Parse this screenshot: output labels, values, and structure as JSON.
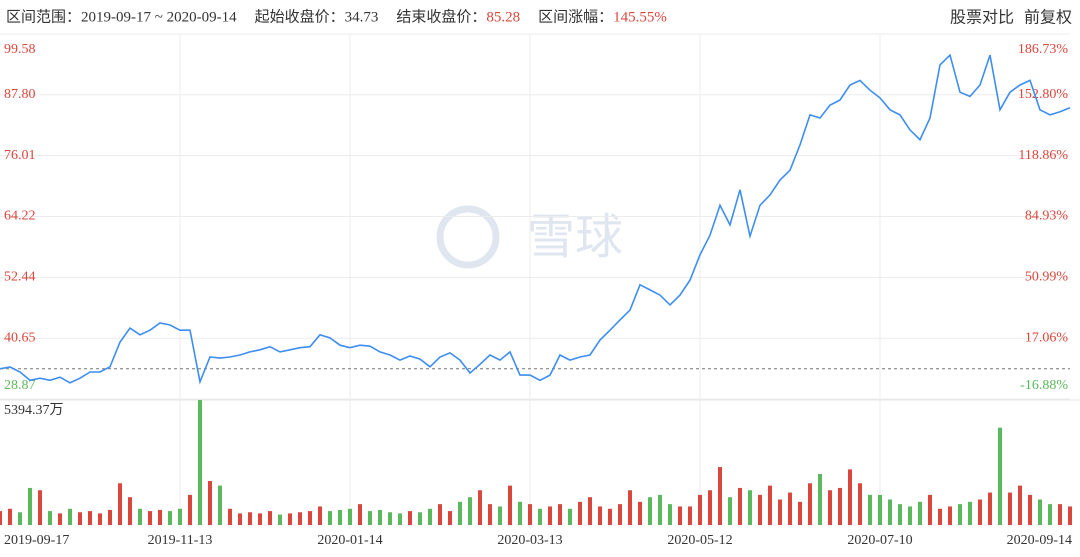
{
  "chart_data": {
    "type": "line",
    "range_label": "区间范围：",
    "range": "2019-09-17 ~ 2020-09-14",
    "stats": [
      {
        "label": "起始收盘价：",
        "value": 34.73
      },
      {
        "label": "结束收盘价：",
        "value": 85.28
      },
      {
        "label": "区间涨幅：",
        "value": 145.55,
        "value_label": "145.55%"
      }
    ],
    "buttons": [
      "股票对比",
      "前复权"
    ],
    "watermark": "雪球",
    "color": "#3d8ef0",
    "up_color": "#d9473d",
    "down_color": "#5cb85c",
    "categories": [
      "2019-09-17",
      null,
      null,
      null,
      null,
      null,
      null,
      null,
      null,
      null,
      null,
      null,
      null,
      null,
      null,
      null,
      null,
      null,
      "2019-11-13",
      null,
      null,
      null,
      null,
      null,
      null,
      null,
      null,
      null,
      null,
      null,
      null,
      null,
      null,
      null,
      null,
      "2020-01-14",
      null,
      null,
      null,
      null,
      null,
      null,
      null,
      null,
      null,
      null,
      null,
      null,
      null,
      null,
      null,
      null,
      null,
      "2020-03-13",
      null,
      null,
      null,
      null,
      null,
      null,
      null,
      null,
      null,
      null,
      null,
      null,
      null,
      null,
      null,
      null,
      "2020-05-12",
      null,
      null,
      null,
      null,
      null,
      null,
      null,
      null,
      null,
      null,
      null,
      null,
      null,
      null,
      null,
      null,
      null,
      "2020-07-10",
      null,
      null,
      null,
      null,
      null,
      null,
      null,
      null,
      null,
      null,
      null,
      null,
      null,
      null,
      null,
      null,
      null,
      null,
      "2020-09-14"
    ],
    "values": [
      34.73,
      35.07,
      34.1,
      32.5,
      32.9,
      32.5,
      33.1,
      32.0,
      32.9,
      34.1,
      34.1,
      35.1,
      39.9,
      42.6,
      41.3,
      42.2,
      43.6,
      43.2,
      42.2,
      42.2,
      32.2,
      37.0,
      36.8,
      37.0,
      37.4,
      38.0,
      38.4,
      39.0,
      38.0,
      38.4,
      38.8,
      39.0,
      41.3,
      40.7,
      39.3,
      38.8,
      39.3,
      39.1,
      38.0,
      37.4,
      36.4,
      37.2,
      36.6,
      35.1,
      37.0,
      37.8,
      36.4,
      33.9,
      35.6,
      37.4,
      36.4,
      38.0,
      33.5,
      33.5,
      32.5,
      33.5,
      37.4,
      36.4,
      37.0,
      37.4,
      40.3,
      42.2,
      44.2,
      46.1,
      51.0,
      50.0,
      49.0,
      47.1,
      49.0,
      51.9,
      56.8,
      60.6,
      66.4,
      62.6,
      69.4,
      60.4,
      66.4,
      68.4,
      71.3,
      73.2,
      78.1,
      83.9,
      83.3,
      85.8,
      86.8,
      89.7,
      90.6,
      88.7,
      87.2,
      84.9,
      83.9,
      81.0,
      79.1,
      83.3,
      93.6,
      95.5,
      88.3,
      87.5,
      89.7,
      95.5,
      84.9,
      88.3,
      89.7,
      90.6,
      84.9,
      83.9,
      84.5,
      85.28
    ],
    "volume": [
      600,
      700,
      550,
      1600,
      1500,
      600,
      500,
      700,
      550,
      600,
      500,
      650,
      1800,
      1200,
      700,
      600,
      650,
      600,
      700,
      1300,
      5394.37,
      1900,
      1700,
      700,
      500,
      550,
      500,
      600,
      450,
      500,
      550,
      600,
      800,
      600,
      650,
      700,
      900,
      600,
      650,
      550,
      500,
      600,
      550,
      700,
      900,
      600,
      1000,
      1200,
      1500,
      900,
      800,
      1700,
      1000,
      900,
      700,
      800,
      900,
      700,
      1000,
      1200,
      800,
      700,
      900,
      1500,
      1000,
      1200,
      1300,
      900,
      800,
      800,
      1300,
      1500,
      2500,
      1200,
      1600,
      1500,
      1300,
      1700,
      1100,
      1400,
      1000,
      1800,
      2200,
      1500,
      1600,
      2400,
      1800,
      1300,
      1300,
      1100,
      900,
      800,
      1000,
      1300,
      700,
      800,
      900,
      1000,
      1100,
      1400,
      4200,
      1400,
      1700,
      1300,
      1100,
      900,
      900,
      800
    ],
    "ylim": [
      28.87,
      99.58
    ],
    "yticks": [
      99.58,
      {
        "value": 87.8,
        "label": "87.80"
      },
      76.01,
      64.22,
      52.44,
      40.65,
      28.87
    ],
    "y2lim": [
      -16.88,
      186.73
    ],
    "y2ticks": [
      {
        "value": 186.73,
        "label": "186.73%"
      },
      {
        "value": 152.8,
        "label": "152.80%"
      },
      {
        "value": 118.86,
        "label": "118.86%"
      },
      {
        "value": 84.93,
        "label": "84.93%"
      },
      {
        "value": 50.99,
        "label": "50.99%"
      },
      {
        "value": 17.06,
        "label": "17.06%"
      },
      {
        "value": -16.88,
        "label": "-16.88%"
      }
    ],
    "vlim": [
      0,
      5394.37
    ],
    "vticks": [
      {
        "value": 5394.37,
        "label": "5394.37万"
      }
    ],
    "grid": true
  }
}
